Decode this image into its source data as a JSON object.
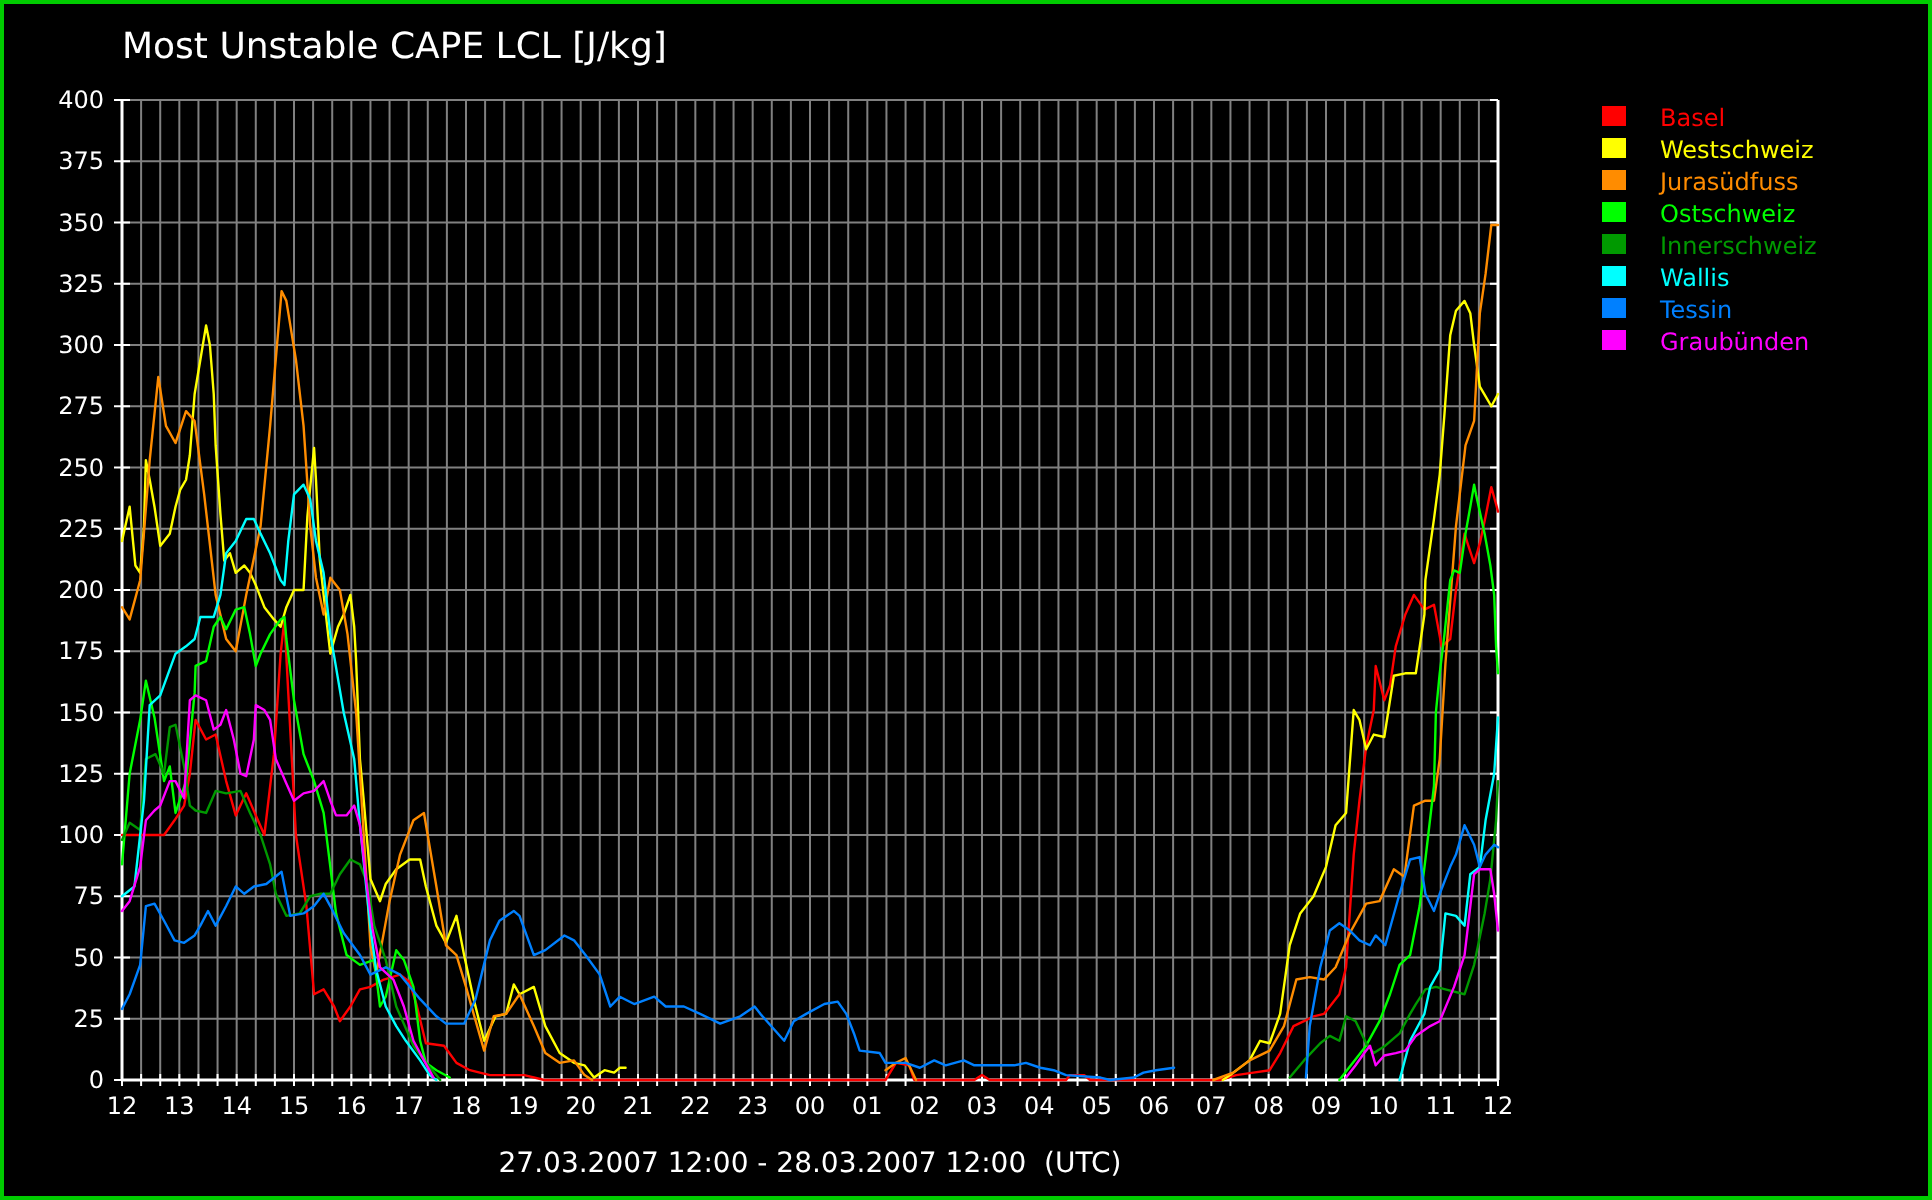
{
  "chart_data": {
    "type": "line",
    "title": "Most Unstable CAPE LCL [J/kg]",
    "xlabel": "27.03.2007 12:00 - 28.03.2007 12:00  (UTC)",
    "xlim": [
      "2007-03-27T12:00",
      "2007-03-28T12:00"
    ],
    "ylim": [
      0,
      400
    ],
    "xticks": [
      {
        "value": "2007-03-27T12:00",
        "label": "12"
      },
      {
        "value": "2007-03-27T12:20",
        "label": null
      },
      {
        "value": "2007-03-27T12:40",
        "label": null
      },
      {
        "value": "2007-03-27T13:00",
        "label": "13"
      },
      {
        "value": "2007-03-27T13:20",
        "label": null
      },
      {
        "value": "2007-03-27T13:40",
        "label": null
      },
      {
        "value": "2007-03-27T14:00",
        "label": "14"
      },
      {
        "value": "2007-03-27T14:20",
        "label": null
      },
      {
        "value": "2007-03-27T14:40",
        "label": null
      },
      {
        "value": "2007-03-27T15:00",
        "label": "15"
      },
      {
        "value": "2007-03-27T15:20",
        "label": null
      },
      {
        "value": "2007-03-27T15:40",
        "label": null
      },
      {
        "value": "2007-03-27T16:00",
        "label": "16"
      },
      {
        "value": "2007-03-27T16:20",
        "label": null
      },
      {
        "value": "2007-03-27T16:40",
        "label": null
      },
      {
        "value": "2007-03-27T17:00",
        "label": "17"
      },
      {
        "value": "2007-03-27T17:20",
        "label": null
      },
      {
        "value": "2007-03-27T17:40",
        "label": null
      },
      {
        "value": "2007-03-27T18:00",
        "label": "18"
      },
      {
        "value": "2007-03-27T18:20",
        "label": null
      },
      {
        "value": "2007-03-27T18:40",
        "label": null
      },
      {
        "value": "2007-03-27T19:00",
        "label": "19"
      },
      {
        "value": "2007-03-27T19:20",
        "label": null
      },
      {
        "value": "2007-03-27T19:40",
        "label": null
      },
      {
        "value": "2007-03-27T20:00",
        "label": "20"
      },
      {
        "value": "2007-03-27T20:20",
        "label": null
      },
      {
        "value": "2007-03-27T20:40",
        "label": null
      },
      {
        "value": "2007-03-27T21:00",
        "label": "21"
      },
      {
        "value": "2007-03-27T21:20",
        "label": null
      },
      {
        "value": "2007-03-27T21:40",
        "label": null
      },
      {
        "value": "2007-03-27T22:00",
        "label": "22"
      },
      {
        "value": "2007-03-27T22:20",
        "label": null
      },
      {
        "value": "2007-03-27T22:40",
        "label": null
      },
      {
        "value": "2007-03-27T23:00",
        "label": "23"
      },
      {
        "value": "2007-03-27T23:20",
        "label": null
      },
      {
        "value": "2007-03-27T23:40",
        "label": null
      },
      {
        "value": "2007-03-28T00:00",
        "label": "00"
      },
      {
        "value": "2007-03-28T00:20",
        "label": null
      },
      {
        "value": "2007-03-28T00:40",
        "label": null
      },
      {
        "value": "2007-03-28T01:00",
        "label": "01"
      },
      {
        "value": "2007-03-28T01:20",
        "label": null
      },
      {
        "value": "2007-03-28T01:40",
        "label": null
      },
      {
        "value": "2007-03-28T02:00",
        "label": "02"
      },
      {
        "value": "2007-03-28T02:20",
        "label": null
      },
      {
        "value": "2007-03-28T02:40",
        "label": null
      },
      {
        "value": "2007-03-28T03:00",
        "label": "03"
      },
      {
        "value": "2007-03-28T03:20",
        "label": null
      },
      {
        "value": "2007-03-28T03:40",
        "label": null
      },
      {
        "value": "2007-03-28T04:00",
        "label": "04"
      },
      {
        "value": "2007-03-28T04:20",
        "label": null
      },
      {
        "value": "2007-03-28T04:40",
        "label": null
      },
      {
        "value": "2007-03-28T05:00",
        "label": "05"
      },
      {
        "value": "2007-03-28T05:20",
        "label": null
      },
      {
        "value": "2007-03-28T05:40",
        "label": null
      },
      {
        "value": "2007-03-28T06:00",
        "label": "06"
      },
      {
        "value": "2007-03-28T06:20",
        "label": null
      },
      {
        "value": "2007-03-28T06:40",
        "label": null
      },
      {
        "value": "2007-03-28T07:00",
        "label": "07"
      },
      {
        "value": "2007-03-28T07:20",
        "label": null
      },
      {
        "value": "2007-03-28T07:40",
        "label": null
      },
      {
        "value": "2007-03-28T08:00",
        "label": "08"
      },
      {
        "value": "2007-03-28T08:20",
        "label": null
      },
      {
        "value": "2007-03-28T08:40",
        "label": null
      },
      {
        "value": "2007-03-28T09:00",
        "label": "09"
      },
      {
        "value": "2007-03-28T09:20",
        "label": null
      },
      {
        "value": "2007-03-28T09:40",
        "label": null
      },
      {
        "value": "2007-03-28T10:00",
        "label": "10"
      },
      {
        "value": "2007-03-28T10:20",
        "label": null
      },
      {
        "value": "2007-03-28T10:40",
        "label": null
      },
      {
        "value": "2007-03-28T11:00",
        "label": "11"
      },
      {
        "value": "2007-03-28T11:20",
        "label": null
      },
      {
        "value": "2007-03-28T11:40",
        "label": null
      },
      {
        "value": "2007-03-28T12:00",
        "label": "12"
      }
    ],
    "yticks": [
      0,
      25,
      50,
      75,
      100,
      125,
      150,
      175,
      200,
      225,
      250,
      275,
      300,
      325,
      350,
      375,
      400
    ],
    "grid": true,
    "legend": "top right",
    "series": [
      {
        "name": "Basel",
        "color": "#ff0000",
        "x": [
          "2007-03-27T12:00",
          "2007-03-27T12:23",
          "2007-03-27T12:44",
          "2007-03-27T12:55",
          "2007-03-27T13:05",
          "2007-03-27T13:11",
          "2007-03-27T13:17",
          "2007-03-27T13:28",
          "2007-03-27T13:38",
          "2007-03-27T13:49",
          "2007-03-27T13:59",
          "2007-03-27T14:10",
          "2007-03-27T14:29",
          "2007-03-27T14:39",
          "2007-03-27T14:46",
          "2007-03-27T14:50",
          "2007-03-27T14:54",
          "2007-03-27T15:02",
          "2007-03-27T15:13",
          "2007-03-27T15:21",
          "2007-03-27T15:31",
          "2007-03-27T15:42",
          "2007-03-27T15:48",
          "2007-03-27T15:59",
          "2007-03-27T16:09",
          "2007-03-27T16:20",
          "2007-03-27T16:34",
          "2007-03-27T16:51",
          "2007-03-27T17:01",
          "2007-03-27T17:08",
          "2007-03-27T17:18",
          "2007-03-27T17:37",
          "2007-03-27T17:50",
          "2007-03-27T18:04",
          "2007-03-27T18:25",
          "2007-03-27T19:01",
          "2007-03-27T19:22",
          "2007-03-28T01:19",
          "2007-03-28T01:30",
          "2007-03-28T01:44",
          "2007-03-28T01:49",
          "2007-03-28T02:52",
          "2007-03-28T03:00",
          "2007-03-28T03:08",
          "2007-03-28T04:28",
          "2007-03-28T04:32",
          "2007-03-28T04:47",
          "2007-03-28T04:53",
          "2007-03-28T07:09",
          "2007-03-28T07:26",
          "2007-03-28T07:44",
          "2007-03-28T08:01",
          "2007-03-28T08:12",
          "2007-03-28T08:26",
          "2007-03-28T08:37",
          "2007-03-28T08:47",
          "2007-03-28T08:58",
          "2007-03-28T09:04",
          "2007-03-28T09:14",
          "2007-03-28T09:21",
          "2007-03-28T09:29",
          "2007-03-28T09:35",
          "2007-03-28T09:42",
          "2007-03-28T09:50",
          "2007-03-28T09:52",
          "2007-03-28T10:01",
          "2007-03-28T10:07",
          "2007-03-28T10:13",
          "2007-03-28T10:23",
          "2007-03-28T10:32",
          "2007-03-28T10:43",
          "2007-03-28T10:53",
          "2007-03-28T11:01",
          "2007-03-28T11:10",
          "2007-03-28T11:16",
          "2007-03-28T11:25",
          "2007-03-28T11:29",
          "2007-03-28T11:35",
          "2007-03-28T11:41",
          "2007-03-28T11:47",
          "2007-03-28T11:53",
          "2007-03-28T11:58",
          "2007-03-28T12:00"
        ],
        "values": [
          100,
          100,
          100,
          106,
          112,
          125,
          147,
          139,
          141,
          122,
          108,
          117,
          100,
          133,
          174,
          188,
          158,
          100,
          71,
          35,
          37,
          30,
          24,
          30,
          37,
          38,
          41,
          43,
          40,
          31,
          15,
          14,
          7,
          4,
          2,
          2,
          0,
          0,
          7,
          6,
          0,
          0,
          2,
          0,
          0,
          2,
          2,
          0,
          0,
          2,
          3,
          4,
          11,
          22,
          24,
          26,
          27,
          30,
          35,
          46,
          92,
          114,
          136,
          151,
          169,
          155,
          161,
          177,
          190,
          198,
          192,
          194,
          177,
          180,
          200,
          223,
          218,
          211,
          219,
          230,
          242,
          235,
          232
        ]
      },
      {
        "name": "Westschweiz",
        "color": "#ffff00",
        "x": [
          "2007-03-27T12:00",
          "2007-03-27T12:08",
          "2007-03-27T12:14",
          "2007-03-27T12:19",
          "2007-03-27T12:23",
          "2007-03-27T12:25",
          "2007-03-27T12:29",
          "2007-03-27T12:34",
          "2007-03-27T12:40",
          "2007-03-27T12:50",
          "2007-03-27T12:56",
          "2007-03-27T13:01",
          "2007-03-27T13:07",
          "2007-03-27T13:11",
          "2007-03-27T13:16",
          "2007-03-27T13:22",
          "2007-03-27T13:28",
          "2007-03-27T13:32",
          "2007-03-27T13:36",
          "2007-03-27T13:38",
          "2007-03-27T13:43",
          "2007-03-27T13:47",
          "2007-03-27T13:53",
          "2007-03-27T13:59",
          "2007-03-27T14:08",
          "2007-03-27T14:14",
          "2007-03-27T14:20",
          "2007-03-27T14:29",
          "2007-03-27T14:39",
          "2007-03-27T14:46",
          "2007-03-27T14:52",
          "2007-03-27T15:00",
          "2007-03-27T15:10",
          "2007-03-27T15:14",
          "2007-03-27T15:21",
          "2007-03-27T15:23",
          "2007-03-27T15:27",
          "2007-03-27T15:31",
          "2007-03-27T15:38",
          "2007-03-27T15:46",
          "2007-03-27T15:52",
          "2007-03-27T15:59",
          "2007-03-27T16:03",
          "2007-03-27T16:05",
          "2007-03-27T16:09",
          "2007-03-27T16:13",
          "2007-03-27T16:20",
          "2007-03-27T16:30",
          "2007-03-27T16:36",
          "2007-03-27T16:47",
          "2007-03-27T17:01",
          "2007-03-27T17:12",
          "2007-03-27T17:18",
          "2007-03-27T17:29",
          "2007-03-27T17:39",
          "2007-03-27T17:50",
          "2007-03-27T17:58",
          "2007-03-27T18:08",
          "2007-03-27T18:19",
          "2007-03-27T18:31",
          "2007-03-27T18:42",
          "2007-03-27T18:50",
          "2007-03-27T18:56",
          "2007-03-27T19:11",
          "2007-03-27T19:23",
          "2007-03-27T19:38",
          "2007-03-27T19:53",
          "2007-03-27T20:04",
          "2007-03-27T20:14",
          "2007-03-27T20:25",
          "2007-03-27T20:35",
          "2007-03-27T20:41",
          "2007-03-27T20:47",
          "2007-03-28T00:00",
          "2007-03-28T07:12",
          "2007-03-28T07:23",
          "2007-03-28T07:40",
          "2007-03-28T07:51",
          "2007-03-28T08:01",
          "2007-03-28T08:12",
          "2007-03-28T08:22",
          "2007-03-28T08:33",
          "2007-03-28T08:47",
          "2007-03-28T09:00",
          "2007-03-28T09:10",
          "2007-03-28T09:21",
          "2007-03-28T09:29",
          "2007-03-28T09:35",
          "2007-03-28T09:42",
          "2007-03-28T09:50",
          "2007-03-28T10:01",
          "2007-03-28T10:11",
          "2007-03-28T10:23",
          "2007-03-28T10:34",
          "2007-03-28T10:43",
          "2007-03-28T10:44",
          "2007-03-28T10:53",
          "2007-03-28T10:59",
          "2007-03-28T11:04",
          "2007-03-28T11:10",
          "2007-03-28T11:16",
          "2007-03-28T11:25",
          "2007-03-28T11:31",
          "2007-03-28T11:35",
          "2007-03-28T11:41",
          "2007-03-28T11:47",
          "2007-03-28T11:53",
          "2007-03-28T12:00"
        ],
        "values": [
          220,
          234,
          210,
          207,
          226,
          253,
          245,
          234,
          218,
          223,
          234,
          241,
          245,
          255,
          280,
          294,
          308,
          300,
          280,
          259,
          231,
          212,
          215,
          207,
          210,
          207,
          202,
          193,
          188,
          185,
          193,
          200,
          200,
          230,
          258,
          245,
          212,
          198,
          174,
          185,
          190,
          198,
          185,
          171,
          131,
          114,
          82,
          73,
          80,
          86,
          90,
          90,
          79,
          63,
          56,
          67,
          51,
          33,
          16,
          26,
          27,
          39,
          35,
          38,
          22,
          11,
          7,
          6,
          1,
          4,
          3,
          5,
          5,
          null,
          0,
          3,
          8,
          16,
          15,
          27,
          55,
          68,
          75,
          87,
          104,
          109,
          151,
          147,
          135,
          141,
          140,
          165,
          166,
          166,
          190,
          204,
          229,
          247,
          272,
          304,
          314,
          318,
          313,
          300,
          283,
          279,
          275,
          280
        ]
      },
      {
        "name": "Jurasüdfuss",
        "color": "#ff8c00",
        "x": [
          "2007-03-27T12:00",
          "2007-03-27T12:08",
          "2007-03-27T12:19",
          "2007-03-27T12:29",
          "2007-03-27T12:38",
          "2007-03-27T12:46",
          "2007-03-27T12:56",
          "2007-03-27T13:07",
          "2007-03-27T13:16",
          "2007-03-27T13:26",
          "2007-03-27T13:38",
          "2007-03-27T13:49",
          "2007-03-27T13:59",
          "2007-03-27T14:10",
          "2007-03-27T14:25",
          "2007-03-27T14:35",
          "2007-03-27T14:47",
          "2007-03-27T14:52",
          "2007-03-27T15:02",
          "2007-03-27T15:10",
          "2007-03-27T15:17",
          "2007-03-27T15:23",
          "2007-03-27T15:31",
          "2007-03-27T15:38",
          "2007-03-27T15:48",
          "2007-03-27T15:56",
          "2007-03-27T16:05",
          "2007-03-27T16:13",
          "2007-03-27T16:20",
          "2007-03-27T16:26",
          "2007-03-27T16:40",
          "2007-03-27T16:51",
          "2007-03-27T17:05",
          "2007-03-27T17:16",
          "2007-03-27T17:29",
          "2007-03-27T17:39",
          "2007-03-27T17:50",
          "2007-03-27T18:00",
          "2007-03-27T18:08",
          "2007-03-27T18:19",
          "2007-03-27T18:29",
          "2007-03-27T18:42",
          "2007-03-27T18:56",
          "2007-03-27T19:11",
          "2007-03-27T19:23",
          "2007-03-27T19:38",
          "2007-03-27T19:53",
          "2007-03-27T20:04",
          "2007-03-27T20:12",
          "2007-03-28T00:00",
          "2007-03-28T01:19",
          "2007-03-28T01:30",
          "2007-03-28T01:40",
          "2007-03-28T01:51",
          "2007-03-28T04:00",
          "2007-03-28T07:02",
          "2007-03-28T07:23",
          "2007-03-28T07:40",
          "2007-03-28T08:01",
          "2007-03-28T08:16",
          "2007-03-28T08:29",
          "2007-03-28T08:43",
          "2007-03-28T08:58",
          "2007-03-28T09:10",
          "2007-03-28T09:25",
          "2007-03-28T09:42",
          "2007-03-28T09:56",
          "2007-03-28T10:11",
          "2007-03-28T10:22",
          "2007-03-28T10:32",
          "2007-03-28T10:44",
          "2007-03-28T10:53",
          "2007-03-28T10:59",
          "2007-03-28T11:05",
          "2007-03-28T11:16",
          "2007-03-28T11:26",
          "2007-03-28T11:35",
          "2007-03-28T11:41",
          "2007-03-28T11:47",
          "2007-03-28T11:53",
          "2007-03-28T12:00"
        ],
        "values": [
          193,
          188,
          204,
          253,
          287,
          267,
          260,
          273,
          269,
          239,
          198,
          180,
          175,
          198,
          226,
          267,
          322,
          318,
          294,
          267,
          226,
          205,
          190,
          205,
          200,
          182,
          150,
          100,
          55,
          43,
          73,
          92,
          106,
          109,
          79,
          55,
          51,
          38,
          27,
          12,
          26,
          27,
          35,
          22,
          11,
          7,
          8,
          2,
          0,
          null,
          4,
          7,
          9,
          0,
          null,
          0,
          3,
          8,
          12,
          22,
          41,
          42,
          41,
          46,
          60,
          72,
          73,
          86,
          83,
          112,
          114,
          114,
          131,
          170,
          226,
          259,
          269,
          313,
          329,
          349,
          349
        ]
      },
      {
        "name": "Ostschweiz",
        "color": "#00ff00",
        "x": [
          "2007-03-27T12:00",
          "2007-03-27T12:08",
          "2007-03-27T12:19",
          "2007-03-27T12:25",
          "2007-03-27T12:34",
          "2007-03-27T12:44",
          "2007-03-27T12:50",
          "2007-03-27T12:56",
          "2007-03-27T13:07",
          "2007-03-27T13:16",
          "2007-03-27T13:17",
          "2007-03-27T13:28",
          "2007-03-27T13:36",
          "2007-03-27T13:43",
          "2007-03-27T13:49",
          "2007-03-27T13:59",
          "2007-03-27T14:08",
          "2007-03-27T14:14",
          "2007-03-27T14:20",
          "2007-03-27T14:25",
          "2007-03-27T14:35",
          "2007-03-27T14:46",
          "2007-03-27T14:50",
          "2007-03-27T14:52",
          "2007-03-27T15:00",
          "2007-03-27T15:10",
          "2007-03-27T15:21",
          "2007-03-27T15:31",
          "2007-03-27T15:38",
          "2007-03-27T15:44",
          "2007-03-27T15:55",
          "2007-03-27T16:09",
          "2007-03-27T16:24",
          "2007-03-27T16:30",
          "2007-03-27T16:36",
          "2007-03-27T16:47",
          "2007-03-27T16:55",
          "2007-03-27T17:05",
          "2007-03-27T17:12",
          "2007-03-27T17:18",
          "2007-03-27T17:29",
          "2007-03-27T17:43",
          "2007-03-28T00:00",
          "2007-03-28T09:14",
          "2007-03-28T09:42",
          "2007-03-28T09:56",
          "2007-03-28T10:07",
          "2007-03-28T10:17",
          "2007-03-28T10:28",
          "2007-03-28T10:38",
          "2007-03-28T10:44",
          "2007-03-28T10:53",
          "2007-03-28T10:55",
          "2007-03-28T10:59",
          "2007-03-28T11:04",
          "2007-03-28T11:10",
          "2007-03-28T11:14",
          "2007-03-28T11:20",
          "2007-03-28T11:26",
          "2007-03-28T11:31",
          "2007-03-28T11:35",
          "2007-03-28T11:37",
          "2007-03-28T11:46",
          "2007-03-28T11:52",
          "2007-03-28T11:56",
          "2007-03-28T11:58",
          "2007-03-28T12:00"
        ],
        "values": [
          88,
          125,
          147,
          163,
          148,
          122,
          128,
          109,
          122,
          158,
          169,
          171,
          185,
          189,
          184,
          192,
          193,
          182,
          169,
          174,
          182,
          188,
          189,
          180,
          155,
          133,
          122,
          109,
          87,
          68,
          51,
          47,
          49,
          30,
          34,
          53,
          49,
          38,
          16,
          7,
          4,
          1,
          null,
          0,
          14,
          24,
          35,
          47,
          51,
          71,
          90,
          120,
          150,
          166,
          182,
          204,
          208,
          207,
          223,
          234,
          243,
          239,
          223,
          210,
          198,
          177,
          166
        ]
      },
      {
        "name": "Innerschweiz",
        "color": "#009900",
        "x": [
          "2007-03-27T12:00",
          "2007-03-27T12:08",
          "2007-03-27T12:19",
          "2007-03-27T12:25",
          "2007-03-27T12:35",
          "2007-03-27T12:44",
          "2007-03-27T12:50",
          "2007-03-27T12:56",
          "2007-03-27T13:05",
          "2007-03-27T13:11",
          "2007-03-27T13:17",
          "2007-03-27T13:28",
          "2007-03-27T13:38",
          "2007-03-27T13:49",
          "2007-03-27T14:04",
          "2007-03-27T14:14",
          "2007-03-27T14:25",
          "2007-03-27T14:35",
          "2007-03-27T14:41",
          "2007-03-27T14:52",
          "2007-03-27T15:06",
          "2007-03-27T15:17",
          "2007-03-27T15:27",
          "2007-03-27T15:38",
          "2007-03-27T15:48",
          "2007-03-27T15:59",
          "2007-03-27T16:09",
          "2007-03-27T16:17",
          "2007-03-27T16:24",
          "2007-03-27T16:36",
          "2007-03-27T16:47",
          "2007-03-27T17:05",
          "2007-03-27T17:18",
          "2007-03-27T17:29",
          "2007-03-27T17:33",
          "2007-03-28T00:00",
          "2007-03-28T08:22",
          "2007-03-28T08:37",
          "2007-03-28T08:54",
          "2007-03-28T09:04",
          "2007-03-28T09:14",
          "2007-03-28T09:21",
          "2007-03-28T09:31",
          "2007-03-28T09:42",
          "2007-03-28T09:50",
          "2007-03-28T10:02",
          "2007-03-28T10:17",
          "2007-03-28T10:28",
          "2007-03-28T10:34",
          "2007-03-28T10:44",
          "2007-03-28T10:55",
          "2007-03-28T11:05",
          "2007-03-28T11:25",
          "2007-03-28T11:35",
          "2007-03-28T11:46",
          "2007-03-28T11:52",
          "2007-03-28T11:58",
          "2007-03-28T12:00"
        ],
        "values": [
          98,
          105,
          102,
          131,
          133,
          125,
          144,
          145,
          128,
          112,
          110,
          109,
          118,
          117,
          118,
          109,
          100,
          88,
          76,
          67,
          68,
          75,
          76,
          76,
          84,
          90,
          88,
          80,
          63,
          49,
          30,
          14,
          7,
          2,
          0,
          null,
          1,
          8,
          15,
          18,
          16,
          26,
          24,
          15,
          11,
          14,
          19,
          27,
          31,
          37,
          38,
          37,
          35,
          47,
          68,
          82,
          106,
          122
        ]
      },
      {
        "name": "Wallis",
        "color": "#00ffff",
        "x": [
          "2007-03-27T12:00",
          "2007-03-27T12:13",
          "2007-03-27T12:23",
          "2007-03-27T12:29",
          "2007-03-27T12:40",
          "2007-03-27T12:56",
          "2007-03-27T13:07",
          "2007-03-27T13:16",
          "2007-03-27T13:22",
          "2007-03-27T13:36",
          "2007-03-27T13:43",
          "2007-03-27T13:49",
          "2007-03-27T13:59",
          "2007-03-27T14:10",
          "2007-03-27T14:18",
          "2007-03-27T14:25",
          "2007-03-27T14:35",
          "2007-03-27T14:46",
          "2007-03-27T14:50",
          "2007-03-27T14:54",
          "2007-03-27T15:00",
          "2007-03-27T15:10",
          "2007-03-27T15:17",
          "2007-03-27T15:23",
          "2007-03-27T15:31",
          "2007-03-27T15:38",
          "2007-03-27T15:42",
          "2007-03-27T15:52",
          "2007-03-27T16:03",
          "2007-03-27T16:09",
          "2007-03-27T16:20",
          "2007-03-27T16:26",
          "2007-03-27T16:36",
          "2007-03-27T16:47",
          "2007-03-27T16:57",
          "2007-03-27T17:12",
          "2007-03-27T17:22",
          "2007-03-27T17:29",
          "2007-03-28T00:00",
          "2007-03-28T10:17",
          "2007-03-28T10:28",
          "2007-03-28T10:43",
          "2007-03-28T10:49",
          "2007-03-28T10:59",
          "2007-03-28T11:05",
          "2007-03-28T11:16",
          "2007-03-28T11:25",
          "2007-03-28T11:31",
          "2007-03-28T11:41",
          "2007-03-28T11:47",
          "2007-03-28T11:56",
          "2007-03-28T12:00"
        ],
        "values": [
          75,
          79,
          114,
          153,
          157,
          174,
          177,
          180,
          189,
          189,
          198,
          215,
          220,
          229,
          229,
          223,
          215,
          204,
          202,
          220,
          239,
          243,
          237,
          220,
          207,
          182,
          173,
          150,
          131,
          104,
          62,
          45,
          30,
          22,
          16,
          8,
          2,
          0,
          null,
          0,
          16,
          27,
          38,
          45,
          68,
          67,
          63,
          84,
          87,
          106,
          125,
          148
        ]
      },
      {
        "name": "Tessin",
        "color": "#0080ff",
        "x": [
          "2007-03-27T12:00",
          "2007-03-27T12:08",
          "2007-03-27T12:19",
          "2007-03-27T12:25",
          "2007-03-27T12:34",
          "2007-03-27T12:44",
          "2007-03-27T12:55",
          "2007-03-27T13:05",
          "2007-03-27T13:16",
          "2007-03-27T13:22",
          "2007-03-27T13:30",
          "2007-03-27T13:38",
          "2007-03-27T13:49",
          "2007-03-27T13:59",
          "2007-03-27T14:08",
          "2007-03-27T14:18",
          "2007-03-27T14:31",
          "2007-03-27T14:47",
          "2007-03-27T14:56",
          "2007-03-27T15:10",
          "2007-03-27T15:21",
          "2007-03-27T15:31",
          "2007-03-27T15:38",
          "2007-03-27T15:52",
          "2007-03-27T16:09",
          "2007-03-27T16:20",
          "2007-03-27T16:36",
          "2007-03-27T16:51",
          "2007-03-27T17:12",
          "2007-03-27T17:29",
          "2007-03-27T17:39",
          "2007-03-27T17:58",
          "2007-03-27T18:10",
          "2007-03-27T18:25",
          "2007-03-27T18:35",
          "2007-03-27T18:50",
          "2007-03-27T18:56",
          "2007-03-27T19:11",
          "2007-03-27T19:23",
          "2007-03-27T19:43",
          "2007-03-27T19:53",
          "2007-03-27T20:05",
          "2007-03-27T20:20",
          "2007-03-27T20:31",
          "2007-03-27T20:41",
          "2007-03-27T20:56",
          "2007-03-27T21:17",
          "2007-03-27T21:29",
          "2007-03-27T21:48",
          "2007-03-27T22:05",
          "2007-03-27T22:26",
          "2007-03-27T22:47",
          "2007-03-27T23:02",
          "2007-03-27T23:08",
          "2007-03-27T23:33",
          "2007-03-27T23:43",
          "2007-03-27T23:56",
          "2007-03-28T00:15",
          "2007-03-28T00:29",
          "2007-03-28T00:38",
          "2007-03-28T00:46",
          "2007-03-28T00:52",
          "2007-03-28T01:13",
          "2007-03-28T01:19",
          "2007-03-28T01:40",
          "2007-03-28T01:55",
          "2007-03-28T02:10",
          "2007-03-28T02:22",
          "2007-03-28T02:41",
          "2007-03-28T02:52",
          "2007-03-28T03:34",
          "2007-03-28T03:46",
          "2007-03-28T04:01",
          "2007-03-28T04:15",
          "2007-03-28T04:28",
          "2007-03-28T05:04",
          "2007-03-28T05:14",
          "2007-03-28T05:39",
          "2007-03-28T05:49",
          "2007-03-28T06:02",
          "2007-03-28T06:21",
          "2007-03-28T07:00",
          "2007-03-28T08:39",
          "2007-03-28T08:43",
          "2007-03-28T08:54",
          "2007-03-28T09:04",
          "2007-03-28T09:14",
          "2007-03-28T09:25",
          "2007-03-28T09:35",
          "2007-03-28T09:46",
          "2007-03-28T09:52",
          "2007-03-28T10:02",
          "2007-03-28T10:17",
          "2007-03-28T10:28",
          "2007-03-28T10:38",
          "2007-03-28T10:44",
          "2007-03-28T10:53",
          "2007-03-28T10:59",
          "2007-03-28T11:10",
          "2007-03-28T11:16",
          "2007-03-28T11:25",
          "2007-03-28T11:35",
          "2007-03-28T11:41",
          "2007-03-28T11:47",
          "2007-03-28T11:56",
          "2007-03-28T12:00"
        ],
        "values": [
          29,
          35,
          47,
          71,
          72,
          65,
          57,
          56,
          59,
          63,
          69,
          63,
          71,
          79,
          76,
          79,
          80,
          85,
          67,
          68,
          71,
          76,
          71,
          60,
          51,
          43,
          46,
          43,
          33,
          26,
          23,
          23,
          33,
          57,
          65,
          69,
          67,
          51,
          53,
          59,
          57,
          51,
          43,
          30,
          34,
          31,
          34,
          30,
          30,
          27,
          23,
          26,
          30,
          27,
          16,
          24,
          27,
          31,
          32,
          27,
          19,
          12,
          11,
          7,
          7,
          5,
          8,
          6,
          8,
          6,
          6,
          7,
          5,
          4,
          2,
          1,
          0,
          1,
          3,
          4,
          5,
          null,
          1,
          22,
          46,
          61,
          64,
          61,
          57,
          55,
          59,
          55,
          76,
          90,
          91,
          76,
          69,
          76,
          87,
          92,
          104,
          96,
          87,
          92,
          96,
          95
        ]
      },
      {
        "name": "Graubünden",
        "color": "#ff00ff",
        "x": [
          "2007-03-27T12:00",
          "2007-03-27T12:08",
          "2007-03-27T12:19",
          "2007-03-27T12:25",
          "2007-03-27T12:34",
          "2007-03-27T12:40",
          "2007-03-27T12:50",
          "2007-03-27T12:56",
          "2007-03-27T13:05",
          "2007-03-27T13:11",
          "2007-03-27T13:17",
          "2007-03-27T13:28",
          "2007-03-27T13:36",
          "2007-03-27T13:43",
          "2007-03-27T13:49",
          "2007-03-27T13:57",
          "2007-03-27T14:04",
          "2007-03-27T14:10",
          "2007-03-27T14:18",
          "2007-03-27T14:20",
          "2007-03-27T14:29",
          "2007-03-27T14:35",
          "2007-03-27T14:41",
          "2007-03-27T14:52",
          "2007-03-27T15:00",
          "2007-03-27T15:10",
          "2007-03-27T15:21",
          "2007-03-27T15:31",
          "2007-03-27T15:38",
          "2007-03-27T15:44",
          "2007-03-27T15:55",
          "2007-03-27T16:03",
          "2007-03-27T16:09",
          "2007-03-27T16:16",
          "2007-03-27T16:22",
          "2007-03-27T16:30",
          "2007-03-27T16:44",
          "2007-03-27T16:55",
          "2007-03-27T17:05",
          "2007-03-27T17:16",
          "2007-03-27T17:26",
          "2007-03-28T00:00",
          "2007-03-28T09:21",
          "2007-03-28T09:31",
          "2007-03-28T09:40",
          "2007-03-28T09:46",
          "2007-03-28T09:52",
          "2007-03-28T10:01",
          "2007-03-28T10:13",
          "2007-03-28T10:23",
          "2007-03-28T10:34",
          "2007-03-28T10:49",
          "2007-03-28T10:59",
          "2007-03-28T11:14",
          "2007-03-28T11:25",
          "2007-03-28T11:35",
          "2007-03-28T11:41",
          "2007-03-28T11:52",
          "2007-03-28T11:56",
          "2007-03-28T12:00"
        ],
        "values": [
          69,
          73,
          87,
          106,
          110,
          112,
          122,
          122,
          115,
          155,
          157,
          155,
          143,
          145,
          151,
          139,
          125,
          124,
          139,
          153,
          151,
          147,
          131,
          121,
          114,
          117,
          118,
          122,
          114,
          108,
          108,
          112,
          104,
          80,
          62,
          46,
          41,
          30,
          16,
          8,
          1,
          null,
          1,
          6,
          11,
          14,
          6,
          10,
          11,
          12,
          18,
          22,
          24,
          38,
          51,
          84,
          86,
          86,
          76,
          61
        ]
      }
    ]
  }
}
